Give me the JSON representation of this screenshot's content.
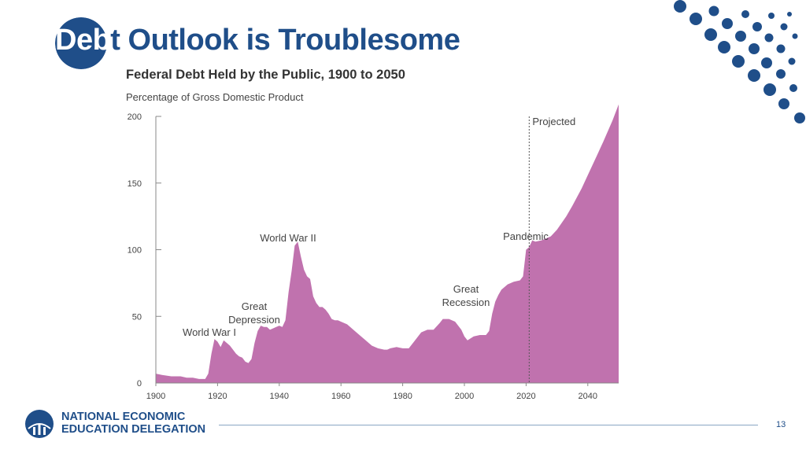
{
  "slide": {
    "title_lead": "Deb",
    "title_rest": "t Outlook is Troublesome",
    "page_number": "13",
    "colors": {
      "brand_blue": "#1f4e89",
      "area_fill": "#c072ae",
      "footer_line": "#8aa6c4"
    }
  },
  "footer": {
    "org_line1": "NATIONAL ECONOMIC",
    "org_line2": "EDUCATION DELEGATION",
    "logo_icon": "globe-logo-icon"
  },
  "chart_data": {
    "type": "area",
    "title": "Federal Debt Held by the Public, 1900 to 2050",
    "subtitle": "Percentage of Gross Domestic Product",
    "xlabel": "",
    "ylabel": "",
    "xlim": [
      1900,
      2050
    ],
    "ylim": [
      0,
      200
    ],
    "x_ticks": [
      1900,
      1920,
      1940,
      1960,
      1980,
      2000,
      2020,
      2040
    ],
    "y_ticks": [
      0,
      50,
      100,
      150,
      200
    ],
    "grid": false,
    "legend": "none",
    "projection_start": 2021,
    "projection_label": "Projected",
    "annotations": [
      {
        "text": "World War I",
        "x": 1918
      },
      {
        "text": "Great Depression",
        "x": 1933
      },
      {
        "text": "World War II",
        "x": 1946
      },
      {
        "text": "Great Recession",
        "x": 2009
      },
      {
        "text": "Pandemic",
        "x": 2020
      }
    ],
    "series": [
      {
        "x": [
          1900,
          1902,
          1905,
          1908,
          1910,
          1912,
          1914,
          1916,
          1917,
          1918,
          1919,
          1920,
          1921,
          1922,
          1923,
          1924,
          1925,
          1926,
          1927,
          1928,
          1929,
          1930,
          1931,
          1932,
          1933,
          1934,
          1935,
          1936,
          1937,
          1938,
          1939,
          1940,
          1941,
          1942,
          1943,
          1944,
          1945,
          1946,
          1947,
          1948,
          1949,
          1950,
          1951,
          1952,
          1953,
          1954,
          1955,
          1956,
          1957,
          1958,
          1959,
          1960,
          1962,
          1964,
          1966,
          1968,
          1970,
          1972,
          1974,
          1975,
          1976,
          1978,
          1980,
          1982,
          1984,
          1986,
          1988,
          1990,
          1992,
          1993,
          1995,
          1997,
          1999,
          2000,
          2001,
          2003,
          2005,
          2007,
          2008,
          2009,
          2010,
          2011,
          2012,
          2014,
          2016,
          2018,
          2019,
          2020,
          2021,
          2022,
          2023,
          2025,
          2028,
          2030,
          2033,
          2035,
          2038,
          2040,
          2043,
          2045,
          2048,
          2050
        ],
        "values": [
          7,
          6,
          5,
          5,
          4,
          4,
          3,
          3,
          7,
          22,
          33,
          31,
          27,
          32,
          30,
          28,
          25,
          22,
          20,
          19,
          16,
          15,
          18,
          30,
          39,
          43,
          42,
          42,
          40,
          41,
          42,
          43,
          42,
          47,
          68,
          84,
          103,
          106,
          95,
          85,
          80,
          78,
          65,
          60,
          57,
          57,
          55,
          52,
          48,
          47,
          47,
          46,
          44,
          40,
          36,
          32,
          28,
          26,
          25,
          25,
          26,
          27,
          26,
          26,
          32,
          38,
          40,
          40,
          45,
          48,
          48,
          46,
          40,
          35,
          32,
          35,
          36,
          36,
          39,
          52,
          61,
          66,
          70,
          74,
          76,
          77,
          80,
          100,
          102,
          107,
          106,
          107,
          110,
          115,
          125,
          133,
          146,
          156,
          171,
          181,
          197,
          209
        ]
      }
    ]
  }
}
